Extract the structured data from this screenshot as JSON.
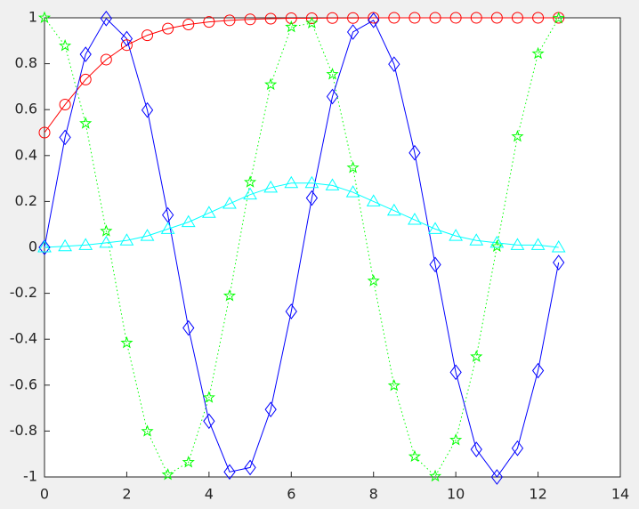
{
  "chart_data": {
    "type": "line",
    "x": [
      0,
      0.5,
      1,
      1.5,
      2,
      2.5,
      3,
      3.5,
      4,
      4.5,
      5,
      5.5,
      6,
      6.5,
      7,
      7.5,
      8,
      8.5,
      9,
      9.5,
      10,
      10.5,
      11,
      11.5,
      12,
      12.5
    ],
    "series": [
      {
        "color": "#ff0000",
        "marker": "circle",
        "linestyle": "solid",
        "values": [
          0.5,
          0.622,
          0.731,
          0.818,
          0.881,
          0.924,
          0.953,
          0.971,
          0.982,
          0.989,
          0.993,
          0.996,
          0.998,
          0.998,
          0.999,
          0.999,
          1.0,
          1.0,
          1.0,
          1.0,
          1.0,
          1.0,
          1.0,
          1.0,
          1.0,
          1.0
        ]
      },
      {
        "color": "#00ff00",
        "marker": "star",
        "linestyle": "dotted",
        "values": [
          1.0,
          0.878,
          0.54,
          0.071,
          -0.416,
          -0.801,
          -0.99,
          -0.936,
          -0.654,
          -0.211,
          0.284,
          0.709,
          0.96,
          0.977,
          0.754,
          0.347,
          -0.146,
          -0.602,
          -0.911,
          -0.997,
          -0.839,
          -0.476,
          0.004,
          0.483,
          0.844,
          0.998
        ]
      },
      {
        "color": "#0000ff",
        "marker": "diamond",
        "linestyle": "solid",
        "values": [
          0,
          0.479,
          0.841,
          0.997,
          0.909,
          0.598,
          0.141,
          -0.351,
          -0.757,
          -0.978,
          -0.959,
          -0.706,
          -0.279,
          0.215,
          0.657,
          0.938,
          0.989,
          0.798,
          0.412,
          -0.075,
          -0.544,
          -0.88,
          -1.0,
          -0.875,
          -0.537,
          -0.066
        ]
      },
      {
        "color": "#00ffff",
        "marker": "triangle",
        "linestyle": "solid",
        "values": [
          0.0,
          0.005,
          0.01,
          0.02,
          0.03,
          0.05,
          0.08,
          0.11,
          0.15,
          0.19,
          0.23,
          0.26,
          0.28,
          0.28,
          0.27,
          0.24,
          0.2,
          0.16,
          0.12,
          0.08,
          0.05,
          0.03,
          0.02,
          0.01,
          0.01,
          0.0
        ]
      }
    ],
    "xlim": [
      0,
      14
    ],
    "xticks": [
      0,
      2,
      4,
      6,
      8,
      10,
      12,
      14
    ],
    "ylim": [
      -1,
      1
    ],
    "yticks": [
      -1,
      -0.8,
      -0.6,
      -0.4,
      -0.2,
      0,
      0.2,
      0.4,
      0.6,
      0.8,
      1
    ],
    "grid": false
  }
}
